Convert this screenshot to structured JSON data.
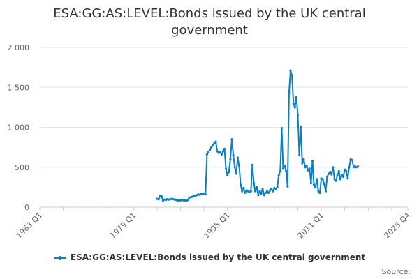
{
  "chart_data": {
    "type": "line",
    "title": "ESA:GG:AS:LEVEL:Bonds issued by the UK central government",
    "xlabel": "",
    "ylabel": "",
    "x_range": [
      "1963 Q1",
      "2025 Q4"
    ],
    "x_ticks": [
      "1963 Q1",
      "1979 Q1",
      "1995 Q1",
      "2011 Q1",
      "2025 Q4"
    ],
    "y_ticks": [
      "0",
      "500",
      "1 000",
      "1 500",
      "2 000"
    ],
    "ylim": [
      0,
      2000
    ],
    "grid": "horizontal",
    "legend_position": "bottom",
    "series": [
      {
        "name": "ESA:GG:AS:LEVEL:Bonds issued by the UK central government",
        "color": "#0d7fbf",
        "points": [
          [
            "1983 Q1",
            105
          ],
          [
            "1983 Q2",
            100
          ],
          [
            "1983 Q3",
            140
          ],
          [
            "1983 Q4",
            135
          ],
          [
            "1984 Q1",
            80
          ],
          [
            "1984 Q2",
            95
          ],
          [
            "1984 Q3",
            90
          ],
          [
            "1984 Q4",
            100
          ],
          [
            "1985 Q1",
            95
          ],
          [
            "1985 Q2",
            100
          ],
          [
            "1985 Q3",
            105
          ],
          [
            "1985 Q4",
            100
          ],
          [
            "1986 Q1",
            95
          ],
          [
            "1986 Q2",
            90
          ],
          [
            "1986 Q3",
            80
          ],
          [
            "1986 Q4",
            85
          ],
          [
            "1987 Q1",
            85
          ],
          [
            "1987 Q2",
            90
          ],
          [
            "1987 Q3",
            85
          ],
          [
            "1987 Q4",
            85
          ],
          [
            "1988 Q1",
            80
          ],
          [
            "1988 Q2",
            90
          ],
          [
            "1988 Q3",
            120
          ],
          [
            "1988 Q4",
            125
          ],
          [
            "1989 Q1",
            130
          ],
          [
            "1989 Q2",
            135
          ],
          [
            "1989 Q3",
            140
          ],
          [
            "1989 Q4",
            150
          ],
          [
            "1990 Q1",
            160
          ],
          [
            "1990 Q2",
            155
          ],
          [
            "1990 Q3",
            165
          ],
          [
            "1990 Q4",
            160
          ],
          [
            "1991 Q1",
            170
          ],
          [
            "1991 Q2",
            160
          ],
          [
            "1991 Q3",
            660
          ],
          [
            "1991 Q4",
            690
          ],
          [
            "1992 Q1",
            720
          ],
          [
            "1992 Q2",
            750
          ],
          [
            "1992 Q3",
            780
          ],
          [
            "1992 Q4",
            800
          ],
          [
            "1993 Q1",
            820
          ],
          [
            "1993 Q2",
            700
          ],
          [
            "1993 Q3",
            680
          ],
          [
            "1993 Q4",
            690
          ],
          [
            "1994 Q1",
            660
          ],
          [
            "1994 Q2",
            700
          ],
          [
            "1994 Q3",
            730
          ],
          [
            "1994 Q4",
            480
          ],
          [
            "1995 Q1",
            400
          ],
          [
            "1995 Q2",
            440
          ],
          [
            "1995 Q3",
            600
          ],
          [
            "1995 Q4",
            850
          ],
          [
            "1996 Q1",
            650
          ],
          [
            "1996 Q2",
            500
          ],
          [
            "1996 Q3",
            420
          ],
          [
            "1996 Q4",
            620
          ],
          [
            "1997 Q1",
            520
          ],
          [
            "1997 Q2",
            280
          ],
          [
            "1997 Q3",
            200
          ],
          [
            "1997 Q4",
            240
          ],
          [
            "1998 Q1",
            180
          ],
          [
            "1998 Q2",
            210
          ],
          [
            "1998 Q3",
            200
          ],
          [
            "1998 Q4",
            190
          ],
          [
            "1999 Q1",
            200
          ],
          [
            "1999 Q2",
            530
          ],
          [
            "1999 Q3",
            300
          ],
          [
            "1999 Q4",
            200
          ],
          [
            "2000 Q1",
            250
          ],
          [
            "2000 Q2",
            150
          ],
          [
            "2000 Q3",
            200
          ],
          [
            "2000 Q4",
            170
          ],
          [
            "2001 Q1",
            230
          ],
          [
            "2001 Q2",
            150
          ],
          [
            "2001 Q3",
            180
          ],
          [
            "2001 Q4",
            200
          ],
          [
            "2002 Q1",
            180
          ],
          [
            "2002 Q2",
            210
          ],
          [
            "2002 Q3",
            230
          ],
          [
            "2002 Q4",
            200
          ],
          [
            "2003 Q1",
            240
          ],
          [
            "2003 Q2",
            230
          ],
          [
            "2003 Q3",
            250
          ],
          [
            "2003 Q4",
            400
          ],
          [
            "2004 Q1",
            450
          ],
          [
            "2004 Q2",
            990
          ],
          [
            "2004 Q3",
            480
          ],
          [
            "2004 Q4",
            520
          ],
          [
            "2005 Q1",
            450
          ],
          [
            "2005 Q2",
            260
          ],
          [
            "2005 Q3",
            1430
          ],
          [
            "2005 Q4",
            1710
          ],
          [
            "2006 Q1",
            1650
          ],
          [
            "2006 Q2",
            1300
          ],
          [
            "2006 Q3",
            1250
          ],
          [
            "2006 Q4",
            1380
          ],
          [
            "2007 Q1",
            1150
          ],
          [
            "2007 Q2",
            650
          ],
          [
            "2007 Q3",
            1010
          ],
          [
            "2007 Q4",
            550
          ],
          [
            "2008 Q1",
            600
          ],
          [
            "2008 Q2",
            500
          ],
          [
            "2008 Q3",
            520
          ],
          [
            "2008 Q4",
            460
          ],
          [
            "2009 Q1",
            480
          ],
          [
            "2009 Q2",
            300
          ],
          [
            "2009 Q3",
            580
          ],
          [
            "2009 Q4",
            280
          ],
          [
            "2010 Q1",
            250
          ],
          [
            "2010 Q2",
            350
          ],
          [
            "2010 Q3",
            200
          ],
          [
            "2010 Q4",
            180
          ],
          [
            "2011 Q1",
            360
          ],
          [
            "2011 Q2",
            350
          ],
          [
            "2011 Q3",
            290
          ],
          [
            "2011 Q4",
            200
          ],
          [
            "2012 Q1",
            380
          ],
          [
            "2012 Q2",
            420
          ],
          [
            "2012 Q3",
            440
          ],
          [
            "2012 Q4",
            410
          ],
          [
            "2013 Q1",
            500
          ],
          [
            "2013 Q2",
            350
          ],
          [
            "2013 Q3",
            330
          ],
          [
            "2013 Q4",
            400
          ],
          [
            "2014 Q1",
            450
          ],
          [
            "2014 Q2",
            350
          ],
          [
            "2014 Q3",
            400
          ],
          [
            "2014 Q4",
            380
          ],
          [
            "2015 Q1",
            470
          ],
          [
            "2015 Q2",
            450
          ],
          [
            "2015 Q3",
            360
          ],
          [
            "2015 Q4",
            500
          ],
          [
            "2016 Q1",
            600
          ],
          [
            "2016 Q2",
            590
          ],
          [
            "2016 Q3",
            500
          ],
          [
            "2016 Q4",
            510
          ],
          [
            "2017 Q1",
            500
          ],
          [
            "2017 Q2",
            510
          ]
        ]
      }
    ]
  },
  "footer": {
    "source_label": "Source:"
  }
}
